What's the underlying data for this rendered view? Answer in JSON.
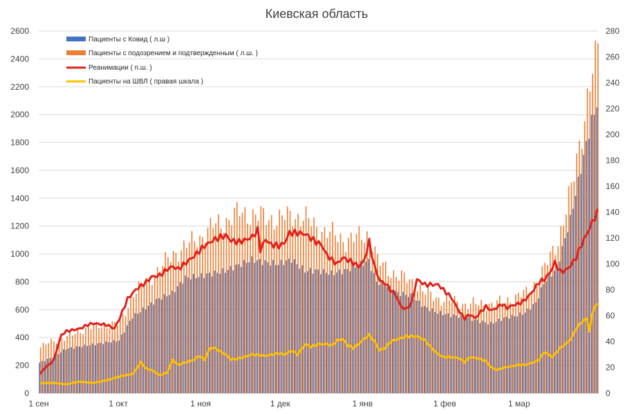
{
  "chart_data": {
    "type": "bar+line",
    "title": "Киевская область",
    "x_tick_labels": [
      "1 сен",
      "1 окт",
      "1 ноя",
      "1 дек",
      "1 янв",
      "1 фев",
      "1 мар"
    ],
    "days_count": 211,
    "left_axis": {
      "min": 0,
      "max": 2600,
      "step": 200,
      "tick_labels": [
        "0",
        "200",
        "400",
        "600",
        "800",
        "1000",
        "1200",
        "1400",
        "1600",
        "1800",
        "2000",
        "2200",
        "2400",
        "2600"
      ]
    },
    "right_axis": {
      "min": 0,
      "max": 280,
      "step": 20,
      "tick_labels": [
        "0",
        "20",
        "40",
        "60",
        "80",
        "100",
        "120",
        "140",
        "160",
        "180",
        "200",
        "220",
        "240",
        "260",
        "280"
      ]
    },
    "series": [
      {
        "name": "Пациенты с Ковид ( л.ш )",
        "type": "bar",
        "axis": "left",
        "color": "#4472c4",
        "keyframes": [
          [
            0,
            220
          ],
          [
            5,
            260
          ],
          [
            10,
            320
          ],
          [
            20,
            350
          ],
          [
            30,
            380
          ],
          [
            35,
            550
          ],
          [
            45,
            680
          ],
          [
            50,
            720
          ],
          [
            55,
            830
          ],
          [
            60,
            840
          ],
          [
            65,
            860
          ],
          [
            70,
            880
          ],
          [
            75,
            920
          ],
          [
            80,
            960
          ],
          [
            85,
            940
          ],
          [
            90,
            930
          ],
          [
            95,
            960
          ],
          [
            100,
            880
          ],
          [
            105,
            880
          ],
          [
            110,
            860
          ],
          [
            115,
            880
          ],
          [
            120,
            920
          ],
          [
            124,
            950
          ],
          [
            127,
            800
          ],
          [
            130,
            780
          ],
          [
            135,
            720
          ],
          [
            140,
            700
          ],
          [
            145,
            620
          ],
          [
            150,
            580
          ],
          [
            155,
            560
          ],
          [
            160,
            550
          ],
          [
            165,
            520
          ],
          [
            170,
            500
          ],
          [
            175,
            540
          ],
          [
            180,
            560
          ],
          [
            183,
            580
          ],
          [
            187,
            650
          ],
          [
            190,
            790
          ],
          [
            195,
            900
          ],
          [
            200,
            1250
          ],
          [
            205,
            1700
          ],
          [
            208,
            1960
          ],
          [
            209,
            2000
          ],
          [
            210,
            2090
          ]
        ]
      },
      {
        "name": "Пациенты с подозрением и подтвержденным ( л.ш. )",
        "type": "bar",
        "axis": "left",
        "color": "#ed7d31",
        "keyframes": [
          [
            0,
            330
          ],
          [
            5,
            380
          ],
          [
            10,
            400
          ],
          [
            15,
            450
          ],
          [
            20,
            480
          ],
          [
            30,
            500
          ],
          [
            35,
            720
          ],
          [
            40,
            800
          ],
          [
            45,
            900
          ],
          [
            50,
            1000
          ],
          [
            55,
            1060
          ],
          [
            60,
            1120
          ],
          [
            65,
            1200
          ],
          [
            70,
            1240
          ],
          [
            75,
            1300
          ],
          [
            80,
            1280
          ],
          [
            85,
            1260
          ],
          [
            90,
            1250
          ],
          [
            95,
            1280
          ],
          [
            100,
            1250
          ],
          [
            105,
            1180
          ],
          [
            110,
            1140
          ],
          [
            115,
            1100
          ],
          [
            120,
            1120
          ],
          [
            124,
            1150
          ],
          [
            127,
            950
          ],
          [
            130,
            900
          ],
          [
            135,
            840
          ],
          [
            140,
            800
          ],
          [
            145,
            720
          ],
          [
            150,
            680
          ],
          [
            155,
            660
          ],
          [
            160,
            640
          ],
          [
            165,
            640
          ],
          [
            170,
            640
          ],
          [
            175,
            660
          ],
          [
            180,
            700
          ],
          [
            183,
            720
          ],
          [
            187,
            800
          ],
          [
            190,
            900
          ],
          [
            195,
            1100
          ],
          [
            200,
            1460
          ],
          [
            205,
            2010
          ],
          [
            208,
            2300
          ],
          [
            209,
            2350
          ],
          [
            210,
            2470
          ]
        ]
      },
      {
        "name": "Реанимации ( п.ш. )",
        "type": "line",
        "axis": "right",
        "color": "#e0201a",
        "keyframes": [
          [
            0,
            15
          ],
          [
            2,
            20
          ],
          [
            5,
            25
          ],
          [
            8,
            45
          ],
          [
            10,
            48
          ],
          [
            15,
            50
          ],
          [
            18,
            53
          ],
          [
            20,
            54
          ],
          [
            25,
            53
          ],
          [
            28,
            50
          ],
          [
            30,
            58
          ],
          [
            33,
            73
          ],
          [
            36,
            80
          ],
          [
            40,
            86
          ],
          [
            42,
            90
          ],
          [
            45,
            91
          ],
          [
            48,
            96
          ],
          [
            50,
            98
          ],
          [
            52,
            96
          ],
          [
            55,
            101
          ],
          [
            58,
            106
          ],
          [
            60,
            110
          ],
          [
            62,
            114
          ],
          [
            65,
            118
          ],
          [
            67,
            120
          ],
          [
            70,
            122
          ],
          [
            72,
            118
          ],
          [
            75,
            117
          ],
          [
            78,
            119
          ],
          [
            80,
            121
          ],
          [
            82,
            126
          ],
          [
            83,
            111
          ],
          [
            85,
            119
          ],
          [
            87,
            115
          ],
          [
            90,
            114
          ],
          [
            92,
            116
          ],
          [
            94,
            124
          ],
          [
            97,
            124
          ],
          [
            100,
            123
          ],
          [
            102,
            120
          ],
          [
            104,
            117
          ],
          [
            106,
            115
          ],
          [
            108,
            107
          ],
          [
            110,
            103
          ],
          [
            112,
            100
          ],
          [
            114,
            105
          ],
          [
            116,
            103
          ],
          [
            118,
            101
          ],
          [
            120,
            98
          ],
          [
            122,
            102
          ],
          [
            124,
            117
          ],
          [
            126,
            98
          ],
          [
            128,
            87
          ],
          [
            130,
            85
          ],
          [
            132,
            80
          ],
          [
            134,
            76
          ],
          [
            136,
            67
          ],
          [
            138,
            65
          ],
          [
            140,
            70
          ],
          [
            142,
            88
          ],
          [
            145,
            84
          ],
          [
            150,
            84
          ],
          [
            152,
            80
          ],
          [
            155,
            74
          ],
          [
            158,
            63
          ],
          [
            160,
            58
          ],
          [
            162,
            61
          ],
          [
            164,
            58
          ],
          [
            166,
            63
          ],
          [
            168,
            67
          ],
          [
            170,
            64
          ],
          [
            172,
            66
          ],
          [
            174,
            69
          ],
          [
            176,
            66
          ],
          [
            178,
            68
          ],
          [
            180,
            69
          ],
          [
            182,
            71
          ],
          [
            184,
            75
          ],
          [
            186,
            80
          ],
          [
            188,
            86
          ],
          [
            190,
            88
          ],
          [
            192,
            93
          ],
          [
            194,
            101
          ],
          [
            196,
            94
          ],
          [
            198,
            95
          ],
          [
            200,
            99
          ],
          [
            202,
            105
          ],
          [
            204,
            115
          ],
          [
            206,
            123
          ],
          [
            208,
            132
          ],
          [
            210,
            140
          ]
        ]
      },
      {
        "name": "Пациенты на ШВЛ ( правая шкала )",
        "type": "line",
        "axis": "right",
        "color": "#ffc000",
        "keyframes": [
          [
            0,
            8
          ],
          [
            5,
            8
          ],
          [
            10,
            7
          ],
          [
            15,
            9
          ],
          [
            20,
            8
          ],
          [
            25,
            10
          ],
          [
            30,
            13
          ],
          [
            35,
            15
          ],
          [
            38,
            24
          ],
          [
            40,
            19
          ],
          [
            42,
            18
          ],
          [
            45,
            14
          ],
          [
            48,
            16
          ],
          [
            50,
            26
          ],
          [
            52,
            22
          ],
          [
            55,
            24
          ],
          [
            58,
            26
          ],
          [
            60,
            29
          ],
          [
            62,
            26
          ],
          [
            64,
            35
          ],
          [
            66,
            35
          ],
          [
            68,
            32
          ],
          [
            70,
            30
          ],
          [
            72,
            26
          ],
          [
            75,
            27
          ],
          [
            80,
            30
          ],
          [
            85,
            29
          ],
          [
            90,
            31
          ],
          [
            92,
            30
          ],
          [
            95,
            33
          ],
          [
            97,
            30
          ],
          [
            100,
            38
          ],
          [
            102,
            36
          ],
          [
            105,
            38
          ],
          [
            108,
            38
          ],
          [
            110,
            37
          ],
          [
            112,
            41
          ],
          [
            114,
            42
          ],
          [
            116,
            37
          ],
          [
            118,
            35
          ],
          [
            120,
            38
          ],
          [
            122,
            42
          ],
          [
            124,
            45
          ],
          [
            126,
            40
          ],
          [
            128,
            33
          ],
          [
            130,
            35
          ],
          [
            132,
            40
          ],
          [
            135,
            42
          ],
          [
            138,
            44
          ],
          [
            140,
            44
          ],
          [
            142,
            44
          ],
          [
            145,
            41
          ],
          [
            148,
            34
          ],
          [
            150,
            30
          ],
          [
            152,
            28
          ],
          [
            155,
            28
          ],
          [
            158,
            27
          ],
          [
            160,
            24
          ],
          [
            162,
            28
          ],
          [
            165,
            27
          ],
          [
            168,
            25
          ],
          [
            170,
            20
          ],
          [
            172,
            18
          ],
          [
            175,
            20
          ],
          [
            178,
            21
          ],
          [
            180,
            22
          ],
          [
            183,
            22
          ],
          [
            186,
            24
          ],
          [
            188,
            26
          ],
          [
            190,
            32
          ],
          [
            193,
            28
          ],
          [
            196,
            35
          ],
          [
            198,
            38
          ],
          [
            200,
            42
          ],
          [
            202,
            50
          ],
          [
            204,
            55
          ],
          [
            206,
            58
          ],
          [
            207,
            48
          ],
          [
            208,
            60
          ],
          [
            209,
            68
          ],
          [
            210,
            68
          ]
        ]
      }
    ]
  }
}
